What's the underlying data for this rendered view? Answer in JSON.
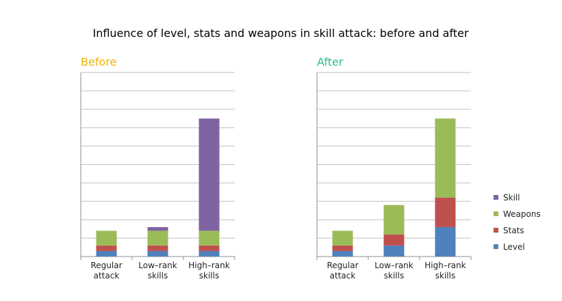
{
  "chart_data": {
    "title": "Influence of level, stats and weapons in skill attack: before and after",
    "type": "bar",
    "stacked": true,
    "ylim": [
      0,
      10
    ],
    "gridlines": true,
    "legend_position": "right",
    "categories": [
      "Regular attack",
      "Low–rank skills",
      "High–rank skills"
    ],
    "series_order": [
      "Level",
      "Stats",
      "Weapons",
      "Skill"
    ],
    "colors": {
      "Level": "#4f81bd",
      "Stats": "#c0504d",
      "Weapons": "#9bbb59",
      "Skill": "#8064a2",
      "title_before": "#f0b400",
      "title_after": "#2bbf8a"
    },
    "panels": [
      {
        "title": "Before",
        "series": [
          {
            "name": "Level",
            "values": [
              0.3,
              0.3,
              0.3
            ]
          },
          {
            "name": "Stats",
            "values": [
              0.3,
              0.3,
              0.3
            ]
          },
          {
            "name": "Weapons",
            "values": [
              0.8,
              0.8,
              0.8
            ]
          },
          {
            "name": "Skill",
            "values": [
              0.0,
              0.2,
              6.1
            ]
          }
        ]
      },
      {
        "title": "After",
        "series": [
          {
            "name": "Level",
            "values": [
              0.3,
              0.6,
              1.6
            ]
          },
          {
            "name": "Stats",
            "values": [
              0.3,
              0.6,
              1.6
            ]
          },
          {
            "name": "Weapons",
            "values": [
              0.8,
              1.6,
              4.3
            ]
          },
          {
            "name": "Skill",
            "values": [
              0.0,
              0.0,
              0.0
            ]
          }
        ]
      }
    ],
    "legend": [
      "Skill",
      "Weapons",
      "Stats",
      "Level"
    ]
  }
}
